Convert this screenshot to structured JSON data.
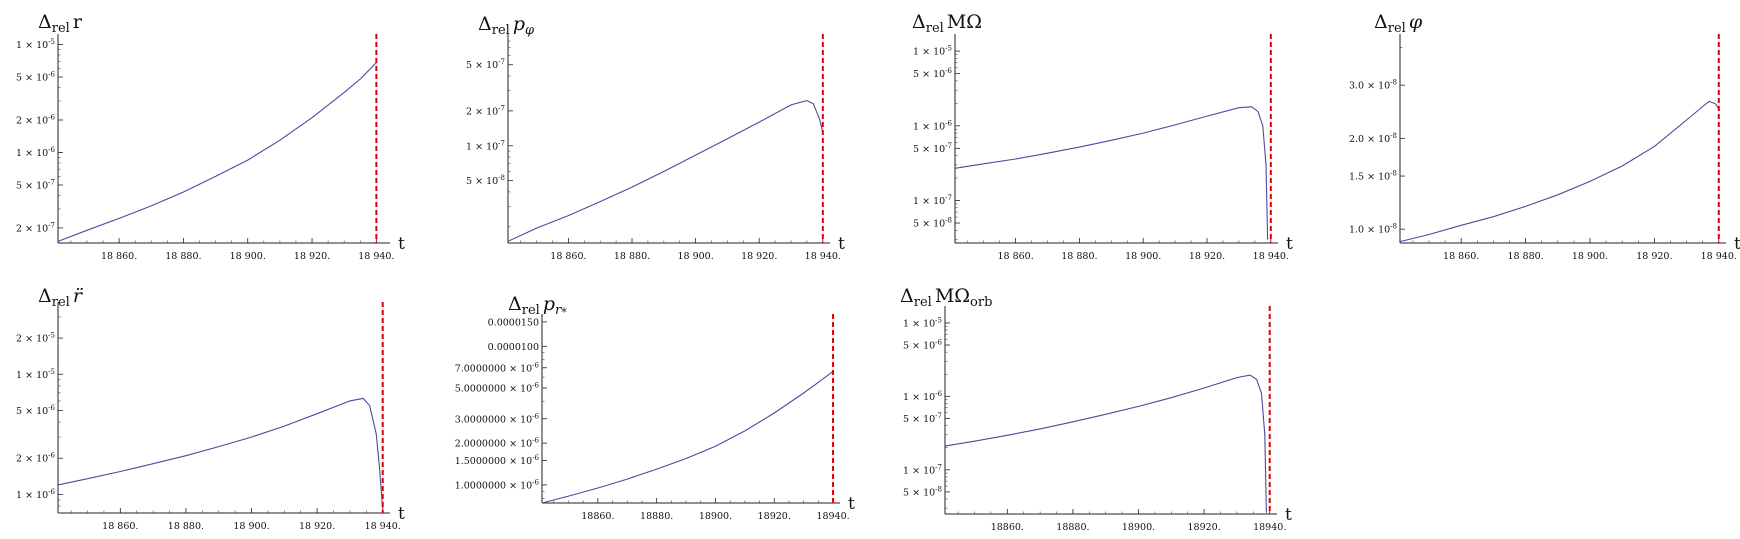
{
  "chart_data": [
    {
      "type": "line",
      "ylabel": "Δrel r",
      "xlabel": "t",
      "yscale": "log",
      "ylim": [
        1.45e-07,
        1.15e-05
      ],
      "xlim": [
        18841,
        18943
      ],
      "xticks": [
        18860,
        18880,
        18900,
        18920,
        18940
      ],
      "xtick_labels": [
        "18 860.",
        "18 880.",
        "18 900.",
        "18 920.",
        "18 940."
      ],
      "yticks": [
        1e-05,
        5e-06,
        2e-06,
        1e-06,
        5e-07,
        2e-07
      ],
      "ytick_labels": [
        "1 × 10^-5",
        "5 × 10^-6",
        "2 × 10^-6",
        "1 × 10^-6",
        "5 × 10^-7",
        "2 × 10^-7"
      ],
      "series": [
        {
          "color": "#4b4ba0",
          "x": [
            18841,
            18850,
            18860,
            18870,
            18880,
            18890,
            18900,
            18910,
            18920,
            18930,
            18935,
            18940
          ],
          "y": [
            1.5e-07,
            1.9e-07,
            2.45e-07,
            3.2e-07,
            4.3e-07,
            6e-07,
            8.5e-07,
            1.3e-06,
            2.1e-06,
            3.6e-06,
            4.8e-06,
            6.8e-06
          ]
        }
      ],
      "vline": {
        "x": 18940,
        "color": "#e00000",
        "style": "dashed"
      }
    },
    {
      "type": "line",
      "ylabel": "Δrel pφ",
      "xlabel": "t",
      "yscale": "log",
      "ylim": [
        1.45e-08,
        8.5e-07
      ],
      "xlim": [
        18841,
        18941
      ],
      "xticks": [
        18860,
        18880,
        18900,
        18920,
        18940
      ],
      "xtick_labels": [
        "18 860.",
        "18 880.",
        "18 900.",
        "18 920.",
        "18 940."
      ],
      "yticks": [
        5e-07,
        2e-07,
        1e-07,
        5e-08
      ],
      "ytick_labels": [
        "5 × 10^-7",
        "2 × 10^-7",
        "1 × 10^-7",
        "5 × 10^-8"
      ],
      "series": [
        {
          "color": "#4b4ba0",
          "x": [
            18841,
            18850,
            18860,
            18870,
            18880,
            18890,
            18900,
            18910,
            18920,
            18930,
            18935,
            18937,
            18939,
            18940
          ],
          "y": [
            1.5e-08,
            1.95e-08,
            2.5e-08,
            3.3e-08,
            4.4e-08,
            6e-08,
            8.3e-08,
            1.15e-07,
            1.6e-07,
            2.25e-07,
            2.45e-07,
            2.3e-07,
            1.7e-07,
            1.3e-07
          ]
        }
      ],
      "vline": {
        "x": 18940,
        "color": "#e00000",
        "style": "dashed"
      }
    },
    {
      "type": "line",
      "ylabel": "Δrel MΩ",
      "xlabel": "t",
      "yscale": "log",
      "ylim": [
        2.7e-08,
        1.5e-05
      ],
      "xlim": [
        18841,
        18941
      ],
      "xticks": [
        18860,
        18880,
        18900,
        18920,
        18940
      ],
      "xtick_labels": [
        "18 860.",
        "18 880.",
        "18 900.",
        "18 920.",
        "18 940."
      ],
      "yticks": [
        1e-05,
        5e-06,
        1e-06,
        5e-07,
        1e-07,
        5e-08
      ],
      "ytick_labels": [
        "1 × 10^-5",
        "5 × 10^-6",
        "1 × 10^-6",
        "5 × 10^-7",
        "1 × 10^-7",
        "5 × 10^-8"
      ],
      "series": [
        {
          "color": "#4b4ba0",
          "x": [
            18841,
            18850,
            18860,
            18870,
            18880,
            18890,
            18900,
            18910,
            18920,
            18930,
            18934,
            18936,
            18937.5,
            18938.5,
            18939
          ],
          "y": [
            2.7e-07,
            3.1e-07,
            3.6e-07,
            4.3e-07,
            5.2e-07,
            6.4e-07,
            8e-07,
            1.03e-06,
            1.35e-06,
            1.75e-06,
            1.8e-06,
            1.55e-06,
            1e-06,
            3e-07,
            3e-08
          ]
        }
      ],
      "vline": {
        "x": 18940,
        "color": "#e00000",
        "style": "dashed"
      }
    },
    {
      "type": "line",
      "ylabel": "Δrel φ",
      "xlabel": "t",
      "yscale": "log",
      "ylim": [
        9e-09,
        4.3e-08
      ],
      "xlim": [
        18841,
        18941
      ],
      "xticks": [
        18860,
        18880,
        18900,
        18920,
        18940
      ],
      "xtick_labels": [
        "18 860.",
        "18 880.",
        "18 900.",
        "18 920.",
        "18 940."
      ],
      "yticks": [
        3e-08,
        2e-08,
        1.5e-08,
        1e-08
      ],
      "ytick_labels": [
        "3.0 × 10^-8",
        "2.0 × 10^-8",
        "1.5 × 10^-8",
        "1.0 × 10^-8"
      ],
      "series": [
        {
          "color": "#4b4ba0",
          "x": [
            18841,
            18850,
            18860,
            18870,
            18880,
            18890,
            18900,
            18910,
            18920,
            18930,
            18935,
            18937,
            18939,
            18940
          ],
          "y": [
            9.1e-09,
            9.6e-09,
            1.03e-08,
            1.1e-08,
            1.19e-08,
            1.3e-08,
            1.44e-08,
            1.62e-08,
            1.88e-08,
            2.3e-08,
            2.55e-08,
            2.65e-08,
            2.6e-08,
            2.5e-08
          ]
        }
      ],
      "vline": {
        "x": 18940,
        "color": "#e00000",
        "style": "dashed"
      }
    },
    {
      "type": "line",
      "ylabel": "Δrel r̈",
      "xlabel": "t",
      "yscale": "log",
      "ylim": [
        7e-07,
        3.7e-05
      ],
      "xlim": [
        18841,
        18941
      ],
      "xticks": [
        18860,
        18880,
        18900,
        18920,
        18940
      ],
      "xtick_labels": [
        "18 860.",
        "18 880.",
        "18 900.",
        "18 920.",
        "18 940."
      ],
      "yticks": [
        2e-05,
        1e-05,
        5e-06,
        2e-06,
        1e-06
      ],
      "ytick_labels": [
        "2 × 10^-5",
        "1 × 10^-5",
        "5 × 10^-6",
        "2 × 10^-6",
        "1 × 10^-6"
      ],
      "series": [
        {
          "color": "#4b4ba0",
          "x": [
            18841,
            18850,
            18860,
            18870,
            18880,
            18890,
            18900,
            18910,
            18920,
            18930,
            18934,
            18936,
            18938,
            18939,
            18940
          ],
          "y": [
            1.2e-06,
            1.35e-06,
            1.55e-06,
            1.8e-06,
            2.1e-06,
            2.5e-06,
            3e-06,
            3.7e-06,
            4.7e-06,
            6e-06,
            6.3e-06,
            5.5e-06,
            3.2e-06,
            1.7e-06,
            7.5e-07
          ]
        }
      ],
      "vline": {
        "x": 18940,
        "color": "#e00000",
        "style": "dashed"
      }
    },
    {
      "type": "line",
      "ylabel": "Δrel pr*",
      "xlabel": "t",
      "yscale": "log",
      "ylim": [
        7.4e-07,
        1.6e-05
      ],
      "xlim": [
        18841,
        18941
      ],
      "xticks": [
        18860,
        18880,
        18900,
        18920,
        18940
      ],
      "xtick_labels": [
        "18860.",
        "18880.",
        "18900.",
        "18920.",
        "18940."
      ],
      "yticks": [
        1.5e-05,
        1e-05,
        7e-06,
        5e-06,
        3e-06,
        2e-06,
        1.5e-06,
        1e-06
      ],
      "ytick_labels": [
        "0.0000150",
        "0.0000100",
        "7.0000000 × 10^-6",
        "5.0000000 × 10^-6",
        "3.0000000 × 10^-6",
        "2.0000000 × 10^-6",
        "1.5000000 × 10^-6",
        "1.0000000 × 10^-6"
      ],
      "series": [
        {
          "color": "#4b4ba0",
          "x": [
            18841,
            18850,
            18860,
            18870,
            18880,
            18890,
            18900,
            18910,
            18920,
            18930,
            18935,
            18940
          ],
          "y": [
            7.4e-07,
            8.3e-07,
            9.5e-07,
            1.1e-06,
            1.3e-06,
            1.55e-06,
            1.9e-06,
            2.45e-06,
            3.3e-06,
            4.6e-06,
            5.5e-06,
            6.6e-06
          ]
        }
      ],
      "vline": {
        "x": 18940,
        "color": "#e00000",
        "style": "dashed"
      }
    },
    {
      "type": "line",
      "ylabel": "Δrel MΩorb",
      "xlabel": "t",
      "yscale": "log",
      "ylim": [
        2.5e-08,
        1.5e-05
      ],
      "xlim": [
        18841,
        18941
      ],
      "xticks": [
        18860,
        18880,
        18900,
        18920,
        18940
      ],
      "xtick_labels": [
        "18860.",
        "18880.",
        "18900.",
        "18920.",
        "18940."
      ],
      "yticks": [
        1e-05,
        5e-06,
        1e-06,
        5e-07,
        1e-07,
        5e-08
      ],
      "ytick_labels": [
        "1 × 10^-5",
        "5 × 10^-6",
        "1 × 10^-6",
        "5 × 10^-7",
        "1 × 10^-7",
        "5 × 10^-8"
      ],
      "series": [
        {
          "color": "#4b4ba0",
          "x": [
            18841,
            18850,
            18860,
            18870,
            18880,
            18890,
            18900,
            18910,
            18920,
            18930,
            18934,
            18936,
            18937.5,
            18938.5,
            18939
          ],
          "y": [
            2.1e-07,
            2.45e-07,
            2.95e-07,
            3.6e-07,
            4.5e-07,
            5.7e-07,
            7.3e-07,
            9.6e-07,
            1.3e-06,
            1.8e-06,
            1.95e-06,
            1.7e-06,
            1.1e-06,
            3e-07,
            2.6e-08
          ]
        }
      ],
      "vline": {
        "x": 18940,
        "color": "#e00000",
        "style": "dashed"
      }
    }
  ]
}
